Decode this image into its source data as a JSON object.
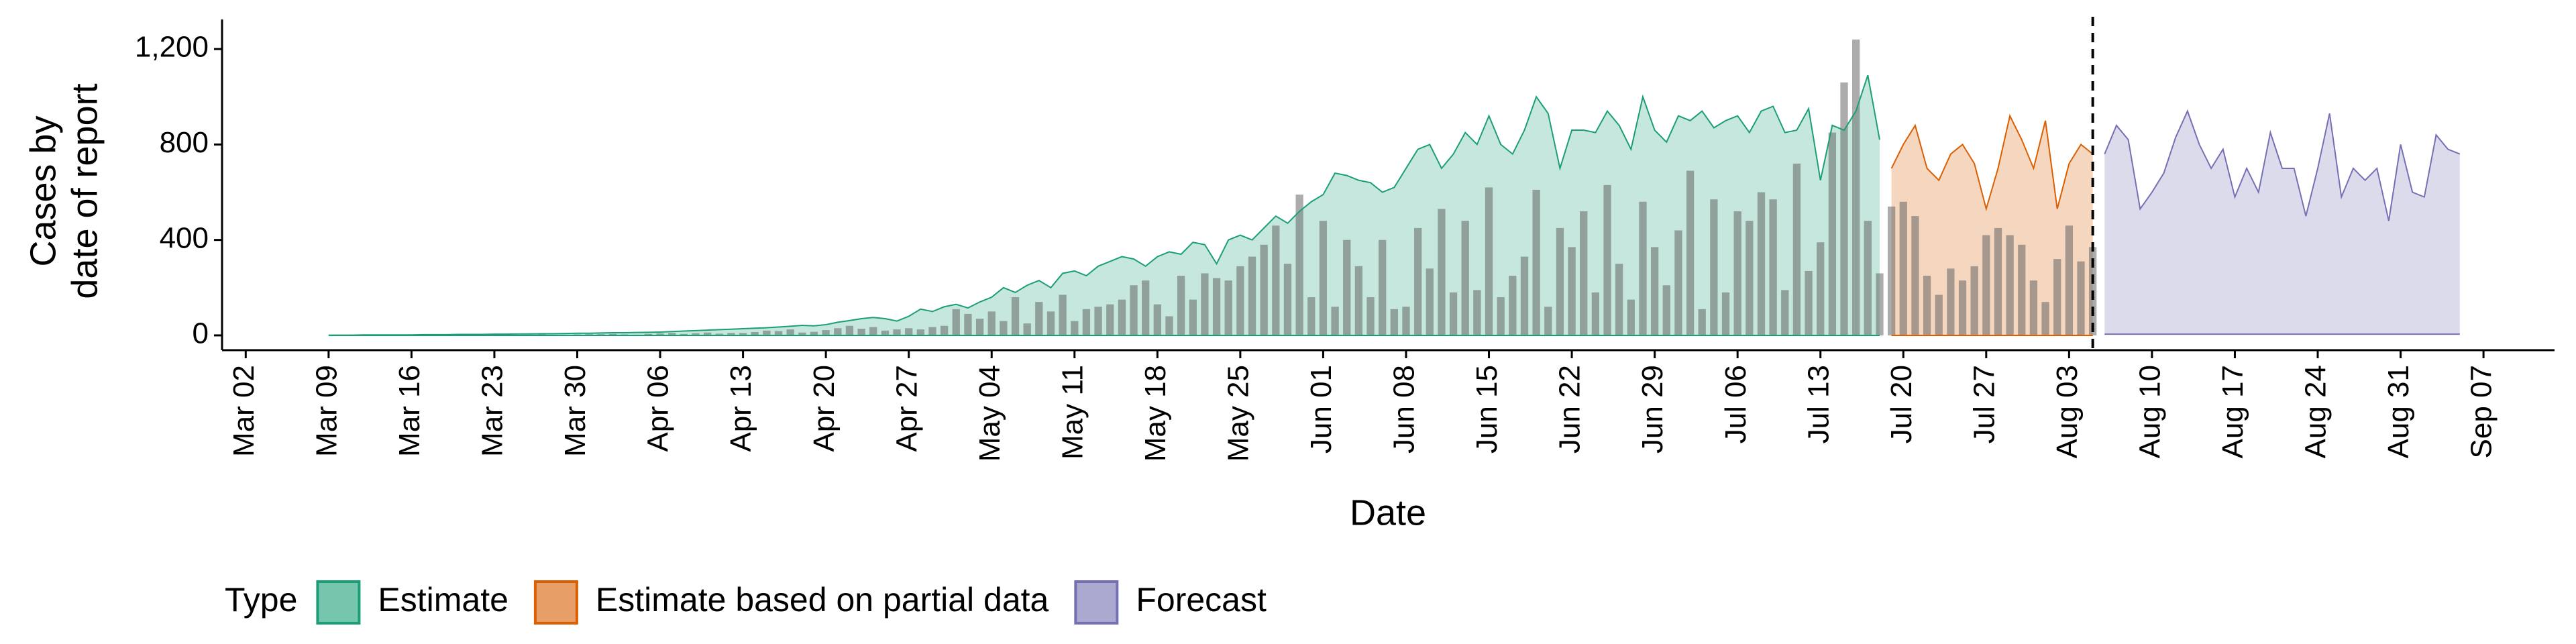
{
  "chart_data": {
    "type": "area",
    "xlabel": "Date",
    "ylabel": [
      "Cases by",
      "date of report"
    ],
    "legend_title": "Type",
    "legend": "bottom",
    "xlim": [
      "02-28",
      "09-13"
    ],
    "ylim": [
      -62,
      1324
    ],
    "yticks": [
      0,
      400,
      800,
      {
        "value": 1200,
        "label": "1,200"
      }
    ],
    "xticks": [
      {
        "value": "03-02",
        "label": "Mar 02"
      },
      {
        "value": "03-09",
        "label": "Mar 09"
      },
      {
        "value": "03-16",
        "label": "Mar 16"
      },
      {
        "value": "03-23",
        "label": "Mar 23"
      },
      {
        "value": "03-30",
        "label": "Mar 30"
      },
      {
        "value": "04-06",
        "label": "Apr 06"
      },
      {
        "value": "04-13",
        "label": "Apr 13"
      },
      {
        "value": "04-20",
        "label": "Apr 20"
      },
      {
        "value": "04-27",
        "label": "Apr 27"
      },
      {
        "value": "05-04",
        "label": "May 04"
      },
      {
        "value": "05-11",
        "label": "May 11"
      },
      {
        "value": "05-18",
        "label": "May 18"
      },
      {
        "value": "05-25",
        "label": "May 25"
      },
      {
        "value": "06-01",
        "label": "Jun 01"
      },
      {
        "value": "06-08",
        "label": "Jun 08"
      },
      {
        "value": "06-15",
        "label": "Jun 15"
      },
      {
        "value": "06-22",
        "label": "Jun 22"
      },
      {
        "value": "06-29",
        "label": "Jun 29"
      },
      {
        "value": "07-06",
        "label": "Jul 06"
      },
      {
        "value": "07-13",
        "label": "Jul 13"
      },
      {
        "value": "07-20",
        "label": "Jul 20"
      },
      {
        "value": "07-27",
        "label": "Jul 27"
      },
      {
        "value": "08-03",
        "label": "Aug 03"
      },
      {
        "value": "08-10",
        "label": "Aug 10"
      },
      {
        "value": "08-17",
        "label": "Aug 17"
      },
      {
        "value": "08-24",
        "label": "Aug 24"
      },
      {
        "value": "08-31",
        "label": "Aug 31"
      },
      {
        "value": "09-07",
        "label": "Sep 07"
      }
    ],
    "vline": "08-05",
    "bars": {
      "color": "#595959",
      "x": [
        "03-09",
        "03-10",
        "03-11",
        "03-12",
        "03-13",
        "03-14",
        "03-15",
        "03-16",
        "03-17",
        "03-18",
        "03-19",
        "03-20",
        "03-21",
        "03-22",
        "03-23",
        "03-24",
        "03-25",
        "03-26",
        "03-27",
        "03-28",
        "03-29",
        "03-30",
        "03-31",
        "04-01",
        "04-02",
        "04-03",
        "04-04",
        "04-05",
        "04-06",
        "04-07",
        "04-08",
        "04-09",
        "04-10",
        "04-11",
        "04-12",
        "04-13",
        "04-14",
        "04-15",
        "04-16",
        "04-17",
        "04-18",
        "04-19",
        "04-20",
        "04-21",
        "04-22",
        "04-23",
        "04-24",
        "04-25",
        "04-26",
        "04-27",
        "04-28",
        "04-29",
        "04-30",
        "05-01",
        "05-02",
        "05-03",
        "05-04",
        "05-05",
        "05-06",
        "05-07",
        "05-08",
        "05-09",
        "05-10",
        "05-11",
        "05-12",
        "05-13",
        "05-14",
        "05-15",
        "05-16",
        "05-17",
        "05-18",
        "05-19",
        "05-20",
        "05-21",
        "05-22",
        "05-23",
        "05-24",
        "05-25",
        "05-26",
        "05-27",
        "05-28",
        "05-29",
        "05-30",
        "05-31",
        "06-01",
        "06-02",
        "06-03",
        "06-04",
        "06-05",
        "06-06",
        "06-07",
        "06-08",
        "06-09",
        "06-10",
        "06-11",
        "06-12",
        "06-13",
        "06-14",
        "06-15",
        "06-16",
        "06-17",
        "06-18",
        "06-19",
        "06-20",
        "06-21",
        "06-22",
        "06-23",
        "06-24",
        "06-25",
        "06-26",
        "06-27",
        "06-28",
        "06-29",
        "06-30",
        "07-01",
        "07-02",
        "07-03",
        "07-04",
        "07-05",
        "07-06",
        "07-07",
        "07-08",
        "07-09",
        "07-10",
        "07-11",
        "07-12",
        "07-13",
        "07-14",
        "07-15",
        "07-16",
        "07-17",
        "07-18",
        "07-19",
        "07-20",
        "07-21",
        "07-22",
        "07-23",
        "07-24",
        "07-25",
        "07-26",
        "07-27",
        "07-28",
        "07-29",
        "07-30",
        "07-31",
        "08-01",
        "08-02",
        "08-03",
        "08-04",
        "08-05"
      ],
      "values": [
        0,
        0,
        0,
        1,
        1,
        0,
        0,
        1,
        1,
        2,
        1,
        2,
        1,
        1,
        2,
        3,
        2,
        3,
        4,
        2,
        3,
        4,
        5,
        5,
        6,
        4,
        3,
        6,
        8,
        10,
        6,
        9,
        12,
        7,
        10,
        10,
        14,
        20,
        18,
        25,
        12,
        15,
        22,
        30,
        40,
        28,
        35,
        20,
        25,
        30,
        25,
        35,
        40,
        110,
        90,
        70,
        100,
        60,
        160,
        50,
        140,
        100,
        170,
        60,
        110,
        120,
        130,
        150,
        210,
        230,
        130,
        80,
        250,
        150,
        260,
        240,
        230,
        290,
        330,
        380,
        460,
        300,
        590,
        160,
        480,
        120,
        400,
        290,
        160,
        400,
        110,
        120,
        450,
        280,
        530,
        180,
        480,
        190,
        620,
        160,
        250,
        330,
        610,
        120,
        450,
        370,
        520,
        180,
        630,
        300,
        150,
        560,
        370,
        210,
        440,
        690,
        110,
        570,
        180,
        520,
        480,
        600,
        570,
        190,
        720,
        270,
        390,
        850,
        1060,
        1240,
        480,
        260,
        540,
        560,
        500,
        250,
        170,
        280,
        230,
        290,
        420,
        450,
        420,
        380,
        230,
        140,
        320,
        460,
        310,
        370
      ]
    },
    "series": [
      {
        "name": "Estimate",
        "color": "#1b9e77",
        "x": [
          "03-09",
          "03-10",
          "03-11",
          "03-12",
          "03-13",
          "03-14",
          "03-15",
          "03-16",
          "03-17",
          "03-18",
          "03-19",
          "03-20",
          "03-21",
          "03-22",
          "03-23",
          "03-24",
          "03-25",
          "03-26",
          "03-27",
          "03-28",
          "03-29",
          "03-30",
          "03-31",
          "04-01",
          "04-02",
          "04-03",
          "04-04",
          "04-05",
          "04-06",
          "04-07",
          "04-08",
          "04-09",
          "04-10",
          "04-11",
          "04-12",
          "04-13",
          "04-14",
          "04-15",
          "04-16",
          "04-17",
          "04-18",
          "04-19",
          "04-20",
          "04-21",
          "04-22",
          "04-23",
          "04-24",
          "04-25",
          "04-26",
          "04-27",
          "04-28",
          "04-29",
          "04-30",
          "05-01",
          "05-02",
          "05-03",
          "05-04",
          "05-05",
          "05-06",
          "05-07",
          "05-08",
          "05-09",
          "05-10",
          "05-11",
          "05-12",
          "05-13",
          "05-14",
          "05-15",
          "05-16",
          "05-17",
          "05-18",
          "05-19",
          "05-20",
          "05-21",
          "05-22",
          "05-23",
          "05-24",
          "05-25",
          "05-26",
          "05-27",
          "05-28",
          "05-29",
          "05-30",
          "05-31",
          "06-01",
          "06-02",
          "06-03",
          "06-04",
          "06-05",
          "06-06",
          "06-07",
          "06-08",
          "06-09",
          "06-10",
          "06-11",
          "06-12",
          "06-13",
          "06-14",
          "06-15",
          "06-16",
          "06-17",
          "06-18",
          "06-19",
          "06-20",
          "06-21",
          "06-22",
          "06-23",
          "06-24",
          "06-25",
          "06-26",
          "06-27",
          "06-28",
          "06-29",
          "06-30",
          "07-01",
          "07-02",
          "07-03",
          "07-04",
          "07-05",
          "07-06",
          "07-07",
          "07-08",
          "07-09",
          "07-10",
          "07-11",
          "07-12",
          "07-13",
          "07-14",
          "07-15",
          "07-16",
          "07-17",
          "07-18"
        ],
        "values": [
          1,
          1,
          1,
          2,
          2,
          2,
          2,
          2,
          3,
          3,
          3,
          4,
          4,
          4,
          5,
          5,
          6,
          6,
          7,
          7,
          8,
          9,
          9,
          10,
          11,
          11,
          12,
          13,
          14,
          16,
          18,
          20,
          22,
          24,
          26,
          28,
          30,
          32,
          35,
          38,
          42,
          40,
          45,
          55,
          62,
          70,
          75,
          70,
          60,
          80,
          110,
          100,
          120,
          130,
          115,
          140,
          160,
          200,
          180,
          210,
          230,
          200,
          260,
          270,
          250,
          290,
          310,
          330,
          320,
          290,
          330,
          350,
          340,
          390,
          380,
          300,
          400,
          420,
          400,
          450,
          500,
          470,
          520,
          560,
          590,
          680,
          670,
          650,
          640,
          600,
          620,
          700,
          780,
          800,
          700,
          760,
          850,
          800,
          920,
          800,
          760,
          860,
          1000,
          930,
          700,
          860,
          860,
          850,
          940,
          880,
          780,
          1000,
          860,
          810,
          920,
          900,
          940,
          870,
          900,
          920,
          850,
          940,
          960,
          850,
          860,
          950,
          650,
          880,
          860,
          940,
          1090,
          820
        ],
        "lower": [
          0,
          0,
          0,
          0,
          0,
          0,
          0,
          0,
          0,
          0,
          0,
          0,
          0,
          0,
          0,
          0,
          0,
          0,
          0,
          0,
          0,
          0,
          0,
          0,
          0,
          0,
          0,
          0,
          0,
          0,
          0,
          0,
          0,
          0,
          0,
          0,
          0,
          0,
          0,
          0,
          0,
          0,
          0,
          0,
          0,
          0,
          0,
          0,
          0,
          0,
          0,
          0,
          0,
          0,
          0,
          0,
          0,
          0,
          0,
          0,
          0,
          0,
          0,
          0,
          0,
          0,
          0,
          0,
          0,
          0,
          0,
          0,
          0,
          0,
          0,
          0,
          0,
          0,
          0,
          0,
          0,
          0,
          0,
          0,
          0,
          0,
          0,
          0,
          0,
          0,
          0,
          0,
          0,
          0,
          0,
          0,
          0,
          0,
          0,
          0,
          0,
          0,
          0,
          0,
          0,
          0,
          0,
          0,
          0,
          0,
          0,
          0,
          0,
          0,
          0,
          0,
          0,
          0,
          0,
          0,
          0,
          0,
          0,
          0,
          0,
          0,
          0,
          0,
          0,
          0,
          0,
          0
        ]
      },
      {
        "name": "Estimate based on partial data",
        "color": "#d95f02",
        "x": [
          "07-19",
          "07-20",
          "07-21",
          "07-22",
          "07-23",
          "07-24",
          "07-25",
          "07-26",
          "07-27",
          "07-28",
          "07-29",
          "07-30",
          "07-31",
          "08-01",
          "08-02",
          "08-03",
          "08-04",
          "08-05"
        ],
        "values": [
          700,
          800,
          880,
          700,
          650,
          760,
          800,
          720,
          530,
          700,
          920,
          820,
          700,
          900,
          530,
          720,
          800,
          760
        ],
        "lower": [
          0,
          0,
          0,
          0,
          0,
          0,
          0,
          0,
          0,
          0,
          0,
          0,
          0,
          0,
          0,
          0,
          0,
          0
        ]
      },
      {
        "name": "Forecast",
        "color": "#7570b3",
        "x": [
          "08-06",
          "08-07",
          "08-08",
          "08-09",
          "08-10",
          "08-11",
          "08-12",
          "08-13",
          "08-14",
          "08-15",
          "08-16",
          "08-17",
          "08-18",
          "08-19",
          "08-20",
          "08-21",
          "08-22",
          "08-23",
          "08-24",
          "08-25",
          "08-26",
          "08-27",
          "08-28",
          "08-29",
          "08-30",
          "08-31",
          "09-01",
          "09-02",
          "09-03",
          "09-04",
          "09-05"
        ],
        "values": [
          760,
          880,
          820,
          530,
          600,
          680,
          830,
          940,
          800,
          700,
          780,
          580,
          700,
          600,
          850,
          700,
          700,
          500,
          700,
          930,
          580,
          700,
          650,
          700,
          480,
          800,
          600,
          580,
          840,
          780,
          760
        ],
        "lower": [
          5,
          5,
          5,
          5,
          5,
          5,
          5,
          5,
          5,
          5,
          5,
          5,
          5,
          5,
          5,
          5,
          5,
          5,
          5,
          5,
          5,
          5,
          5,
          5,
          5,
          5,
          5,
          5,
          5,
          5,
          5
        ]
      }
    ]
  }
}
